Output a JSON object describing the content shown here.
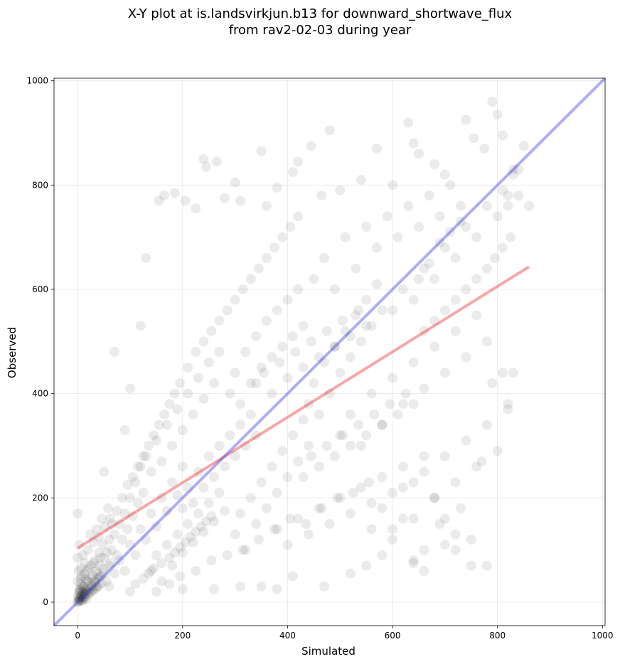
{
  "chart_data": {
    "type": "scatter",
    "title_lines": [
      "X-Y plot at is.landsvirkjun.b13 for downward_shortwave_flux",
      "from rav2-02-03 during year"
    ],
    "xlabel": "Simulated",
    "ylabel": "Observed",
    "xlim": [
      -45,
      1005
    ],
    "ylim": [
      -45,
      1005
    ],
    "xticks": [
      0,
      200,
      400,
      600,
      800,
      1000
    ],
    "yticks": [
      0,
      200,
      400,
      600,
      800,
      1000
    ],
    "grid": true,
    "point_color": "#000000",
    "point_alpha": 0.08,
    "points": [
      [
        0,
        0
      ],
      [
        1,
        2
      ],
      [
        2,
        1
      ],
      [
        3,
        5
      ],
      [
        5,
        3
      ],
      [
        4,
        8
      ],
      [
        6,
        4
      ],
      [
        8,
        10
      ],
      [
        10,
        6
      ],
      [
        7,
        12
      ],
      [
        12,
        9
      ],
      [
        14,
        15
      ],
      [
        15,
        11
      ],
      [
        18,
        20
      ],
      [
        20,
        14
      ],
      [
        2,
        8
      ],
      [
        9,
        2
      ],
      [
        11,
        18
      ],
      [
        16,
        6
      ],
      [
        22,
        25
      ],
      [
        25,
        19
      ],
      [
        28,
        30
      ],
      [
        30,
        22
      ],
      [
        33,
        38
      ],
      [
        35,
        27
      ],
      [
        38,
        45
      ],
      [
        40,
        31
      ],
      [
        44,
        50
      ],
      [
        45,
        36
      ],
      [
        50,
        55
      ],
      [
        3,
        20
      ],
      [
        5,
        35
      ],
      [
        8,
        50
      ],
      [
        12,
        30
      ],
      [
        15,
        45
      ],
      [
        18,
        60
      ],
      [
        20,
        40
      ],
      [
        25,
        70
      ],
      [
        28,
        50
      ],
      [
        32,
        80
      ],
      [
        35,
        60
      ],
      [
        40,
        95
      ],
      [
        42,
        70
      ],
      [
        48,
        110
      ],
      [
        50,
        85
      ],
      [
        0,
        85
      ],
      [
        0,
        170
      ],
      [
        3,
        110
      ],
      [
        6,
        65
      ],
      [
        10,
        90
      ],
      [
        14,
        75
      ],
      [
        20,
        100
      ],
      [
        24,
        130
      ],
      [
        30,
        115
      ],
      [
        36,
        140
      ],
      [
        40,
        125
      ],
      [
        46,
        160
      ],
      [
        52,
        145
      ],
      [
        58,
        180
      ],
      [
        62,
        160
      ],
      [
        55,
        40
      ],
      [
        60,
        70
      ],
      [
        65,
        100
      ],
      [
        70,
        130
      ],
      [
        75,
        90
      ],
      [
        80,
        150
      ],
      [
        85,
        120
      ],
      [
        90,
        170
      ],
      [
        95,
        140
      ],
      [
        100,
        200
      ],
      [
        105,
        165
      ],
      [
        110,
        230
      ],
      [
        115,
        190
      ],
      [
        120,
        260
      ],
      [
        125,
        210
      ],
      [
        60,
        30
      ],
      [
        70,
        55
      ],
      [
        80,
        80
      ],
      [
        90,
        60
      ],
      [
        100,
        110
      ],
      [
        110,
        90
      ],
      [
        120,
        140
      ],
      [
        130,
        120
      ],
      [
        140,
        170
      ],
      [
        150,
        145
      ],
      [
        160,
        200
      ],
      [
        170,
        175
      ],
      [
        180,
        230
      ],
      [
        190,
        205
      ],
      [
        200,
        260
      ],
      [
        130,
        280
      ],
      [
        140,
        250
      ],
      [
        150,
        310
      ],
      [
        160,
        270
      ],
      [
        170,
        340
      ],
      [
        180,
        300
      ],
      [
        190,
        370
      ],
      [
        200,
        330
      ],
      [
        210,
        400
      ],
      [
        220,
        360
      ],
      [
        230,
        430
      ],
      [
        240,
        390
      ],
      [
        250,
        460
      ],
      [
        260,
        420
      ],
      [
        270,
        480
      ],
      [
        140,
        60
      ],
      [
        150,
        90
      ],
      [
        160,
        40
      ],
      [
        170,
        110
      ],
      [
        180,
        70
      ],
      [
        190,
        130
      ],
      [
        200,
        95
      ],
      [
        210,
        150
      ],
      [
        220,
        115
      ],
      [
        230,
        170
      ],
      [
        240,
        135
      ],
      [
        250,
        190
      ],
      [
        260,
        155
      ],
      [
        270,
        210
      ],
      [
        280,
        175
      ],
      [
        200,
        180
      ],
      [
        210,
        220
      ],
      [
        220,
        190
      ],
      [
        230,
        250
      ],
      [
        240,
        220
      ],
      [
        250,
        280
      ],
      [
        260,
        240
      ],
      [
        270,
        300
      ],
      [
        280,
        260
      ],
      [
        290,
        320
      ],
      [
        300,
        280
      ],
      [
        310,
        340
      ],
      [
        320,
        300
      ],
      [
        330,
        360
      ],
      [
        340,
        320
      ],
      [
        290,
        400
      ],
      [
        300,
        440
      ],
      [
        310,
        380
      ],
      [
        320,
        480
      ],
      [
        330,
        420
      ],
      [
        340,
        510
      ],
      [
        350,
        450
      ],
      [
        360,
        540
      ],
      [
        370,
        470
      ],
      [
        380,
        560
      ],
      [
        390,
        490
      ],
      [
        400,
        580
      ],
      [
        410,
        510
      ],
      [
        420,
        600
      ],
      [
        430,
        530
      ],
      [
        300,
        130
      ],
      [
        310,
        170
      ],
      [
        320,
        100
      ],
      [
        330,
        200
      ],
      [
        340,
        150
      ],
      [
        350,
        230
      ],
      [
        360,
        180
      ],
      [
        370,
        260
      ],
      [
        380,
        210
      ],
      [
        390,
        290
      ],
      [
        400,
        240
      ],
      [
        410,
        320
      ],
      [
        420,
        270
      ],
      [
        430,
        350
      ],
      [
        440,
        300
      ],
      [
        380,
        140
      ],
      [
        400,
        110
      ],
      [
        420,
        160
      ],
      [
        440,
        130
      ],
      [
        460,
        180
      ],
      [
        480,
        150
      ],
      [
        500,
        200
      ],
      [
        520,
        170
      ],
      [
        540,
        220
      ],
      [
        560,
        190
      ],
      [
        580,
        240
      ],
      [
        600,
        210
      ],
      [
        620,
        260
      ],
      [
        640,
        230
      ],
      [
        660,
        280
      ],
      [
        440,
        380
      ],
      [
        450,
        420
      ],
      [
        460,
        360
      ],
      [
        470,
        460
      ],
      [
        480,
        400
      ],
      [
        490,
        490
      ],
      [
        500,
        440
      ],
      [
        510,
        520
      ],
      [
        520,
        470
      ],
      [
        530,
        550
      ],
      [
        540,
        500
      ],
      [
        550,
        580
      ],
      [
        560,
        530
      ],
      [
        570,
        610
      ],
      [
        580,
        560
      ],
      [
        450,
        620
      ],
      [
        470,
        660
      ],
      [
        490,
        600
      ],
      [
        510,
        700
      ],
      [
        530,
        640
      ],
      [
        550,
        720
      ],
      [
        570,
        680
      ],
      [
        590,
        740
      ],
      [
        610,
        700
      ],
      [
        630,
        760
      ],
      [
        650,
        720
      ],
      [
        670,
        780
      ],
      [
        690,
        740
      ],
      [
        710,
        800
      ],
      [
        730,
        760
      ],
      [
        500,
        320
      ],
      [
        520,
        360
      ],
      [
        540,
        300
      ],
      [
        560,
        400
      ],
      [
        580,
        340
      ],
      [
        600,
        430
      ],
      [
        620,
        380
      ],
      [
        640,
        460
      ],
      [
        660,
        410
      ],
      [
        680,
        490
      ],
      [
        700,
        440
      ],
      [
        720,
        520
      ],
      [
        740,
        470
      ],
      [
        760,
        550
      ],
      [
        780,
        500
      ],
      [
        600,
        560
      ],
      [
        620,
        600
      ],
      [
        640,
        580
      ],
      [
        660,
        640
      ],
      [
        680,
        620
      ],
      [
        700,
        680
      ],
      [
        720,
        660
      ],
      [
        740,
        720
      ],
      [
        760,
        700
      ],
      [
        780,
        760
      ],
      [
        800,
        740
      ],
      [
        810,
        790
      ],
      [
        820,
        780
      ],
      [
        830,
        820
      ],
      [
        840,
        830
      ],
      [
        560,
        140
      ],
      [
        580,
        180
      ],
      [
        600,
        120
      ],
      [
        620,
        220
      ],
      [
        640,
        160
      ],
      [
        660,
        250
      ],
      [
        680,
        200
      ],
      [
        700,
        280
      ],
      [
        720,
        230
      ],
      [
        740,
        310
      ],
      [
        760,
        260
      ],
      [
        780,
        340
      ],
      [
        800,
        290
      ],
      [
        820,
        370
      ],
      [
        830,
        440
      ],
      [
        50,
        250
      ],
      [
        70,
        480
      ],
      [
        90,
        330
      ],
      [
        100,
        410
      ],
      [
        120,
        530
      ],
      [
        130,
        660
      ],
      [
        155,
        770
      ],
      [
        165,
        780
      ],
      [
        185,
        785
      ],
      [
        205,
        770
      ],
      [
        225,
        755
      ],
      [
        240,
        850
      ],
      [
        245,
        835
      ],
      [
        265,
        845
      ],
      [
        280,
        775
      ],
      [
        300,
        805
      ],
      [
        310,
        770
      ],
      [
        350,
        865
      ],
      [
        360,
        760
      ],
      [
        380,
        795
      ],
      [
        410,
        825
      ],
      [
        420,
        845
      ],
      [
        445,
        875
      ],
      [
        465,
        780
      ],
      [
        480,
        905
      ],
      [
        500,
        790
      ],
      [
        540,
        810
      ],
      [
        570,
        870
      ],
      [
        600,
        800
      ],
      [
        630,
        920
      ],
      [
        640,
        880
      ],
      [
        650,
        860
      ],
      [
        680,
        840
      ],
      [
        700,
        820
      ],
      [
        740,
        925
      ],
      [
        755,
        890
      ],
      [
        775,
        870
      ],
      [
        790,
        960
      ],
      [
        800,
        935
      ],
      [
        810,
        895
      ],
      [
        830,
        830
      ],
      [
        850,
        875
      ],
      [
        860,
        760
      ],
      [
        840,
        780
      ],
      [
        820,
        760
      ],
      [
        640,
        80
      ],
      [
        660,
        60
      ],
      [
        680,
        200
      ],
      [
        700,
        160
      ],
      [
        720,
        100
      ],
      [
        750,
        70
      ],
      [
        780,
        70
      ],
      [
        790,
        420
      ],
      [
        810,
        440
      ],
      [
        820,
        380
      ],
      [
        770,
        270
      ],
      [
        730,
        180
      ],
      [
        690,
        150
      ],
      [
        620,
        160
      ],
      [
        600,
        140
      ],
      [
        200,
        25
      ],
      [
        260,
        25
      ],
      [
        310,
        30
      ],
      [
        350,
        30
      ],
      [
        380,
        25
      ],
      [
        410,
        50
      ],
      [
        470,
        30
      ],
      [
        520,
        55
      ],
      [
        550,
        70
      ],
      [
        580,
        90
      ],
      [
        640,
        75
      ],
      [
        660,
        100
      ],
      [
        700,
        110
      ],
      [
        720,
        130
      ],
      [
        750,
        120
      ],
      [
        150,
        20
      ],
      [
        175,
        35
      ],
      [
        195,
        50
      ],
      [
        225,
        60
      ],
      [
        255,
        80
      ],
      [
        285,
        90
      ],
      [
        315,
        100
      ],
      [
        345,
        120
      ],
      [
        375,
        140
      ],
      [
        405,
        160
      ],
      [
        435,
        150
      ],
      [
        465,
        180
      ],
      [
        495,
        200
      ],
      [
        525,
        210
      ],
      [
        555,
        230
      ],
      [
        100,
        20
      ],
      [
        110,
        35
      ],
      [
        125,
        45
      ],
      [
        135,
        55
      ],
      [
        145,
        65
      ],
      [
        160,
        75
      ],
      [
        175,
        85
      ],
      [
        185,
        95
      ],
      [
        195,
        105
      ],
      [
        205,
        115
      ],
      [
        215,
        125
      ],
      [
        225,
        135
      ],
      [
        235,
        145
      ],
      [
        245,
        155
      ],
      [
        255,
        165
      ],
      [
        60,
        120
      ],
      [
        65,
        150
      ],
      [
        75,
        175
      ],
      [
        85,
        200
      ],
      [
        95,
        225
      ],
      [
        105,
        240
      ],
      [
        115,
        260
      ],
      [
        125,
        280
      ],
      [
        135,
        300
      ],
      [
        145,
        320
      ],
      [
        155,
        340
      ],
      [
        165,
        360
      ],
      [
        175,
        380
      ],
      [
        185,
        400
      ],
      [
        195,
        420
      ],
      [
        210,
        450
      ],
      [
        225,
        480
      ],
      [
        240,
        500
      ],
      [
        255,
        520
      ],
      [
        270,
        540
      ],
      [
        285,
        560
      ],
      [
        300,
        580
      ],
      [
        315,
        600
      ],
      [
        330,
        620
      ],
      [
        345,
        640
      ],
      [
        360,
        660
      ],
      [
        375,
        680
      ],
      [
        390,
        700
      ],
      [
        405,
        720
      ],
      [
        420,
        740
      ],
      [
        340,
        420
      ],
      [
        355,
        440
      ],
      [
        370,
        400
      ],
      [
        385,
        460
      ],
      [
        400,
        430
      ],
      [
        415,
        480
      ],
      [
        430,
        450
      ],
      [
        445,
        500
      ],
      [
        460,
        470
      ],
      [
        475,
        520
      ],
      [
        490,
        490
      ],
      [
        505,
        540
      ],
      [
        520,
        510
      ],
      [
        535,
        560
      ],
      [
        550,
        530
      ],
      [
        430,
        240
      ],
      [
        445,
        280
      ],
      [
        460,
        260
      ],
      [
        475,
        300
      ],
      [
        490,
        280
      ],
      [
        505,
        320
      ],
      [
        520,
        300
      ],
      [
        535,
        340
      ],
      [
        550,
        320
      ],
      [
        565,
        360
      ],
      [
        580,
        340
      ],
      [
        595,
        380
      ],
      [
        610,
        360
      ],
      [
        625,
        400
      ],
      [
        640,
        380
      ],
      [
        660,
        520
      ],
      [
        680,
        540
      ],
      [
        700,
        560
      ],
      [
        720,
        580
      ],
      [
        740,
        600
      ],
      [
        760,
        620
      ],
      [
        780,
        640
      ],
      [
        795,
        660
      ],
      [
        810,
        680
      ],
      [
        825,
        700
      ],
      [
        650,
        620
      ],
      [
        670,
        650
      ],
      [
        690,
        690
      ],
      [
        710,
        710
      ],
      [
        730,
        730
      ],
      [
        0,
        40
      ],
      [
        2,
        60
      ],
      [
        4,
        25
      ],
      [
        6,
        45
      ],
      [
        9,
        30
      ],
      [
        13,
        55
      ],
      [
        17,
        40
      ],
      [
        21,
        65
      ],
      [
        26,
        45
      ],
      [
        31,
        75
      ],
      [
        37,
        55
      ],
      [
        43,
        85
      ],
      [
        49,
        65
      ],
      [
        56,
        95
      ],
      [
        63,
        75
      ],
      [
        1,
        12
      ],
      [
        3,
        18
      ],
      [
        5,
        24
      ],
      [
        7,
        14
      ],
      [
        9,
        20
      ],
      [
        11,
        26
      ],
      [
        13,
        16
      ],
      [
        16,
        22
      ],
      [
        19,
        28
      ],
      [
        22,
        18
      ],
      [
        26,
        32
      ],
      [
        29,
        24
      ],
      [
        33,
        40
      ],
      [
        37,
        30
      ],
      [
        42,
        48
      ]
    ]
  }
}
